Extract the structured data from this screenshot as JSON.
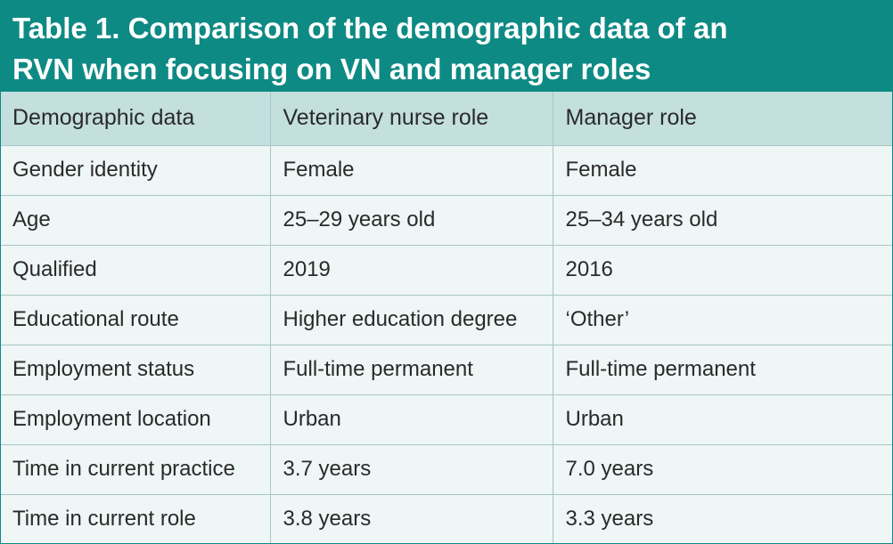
{
  "title": {
    "line1": "Table 1. Comparison of the demographic data of an",
    "line2": "RVN when focusing on VN and manager roles"
  },
  "headers": [
    "Demographic data",
    "Veterinary nurse role",
    "Manager role"
  ],
  "rows": [
    [
      "Gender identity",
      "Female",
      "Female"
    ],
    [
      "Age",
      "25–29 years old",
      "25–34 years old"
    ],
    [
      "Qualified",
      "2019",
      "2016"
    ],
    [
      "Educational route",
      "Higher education degree",
      "‘Other’"
    ],
    [
      "Employment status",
      "Full-time permanent",
      "Full-time permanent"
    ],
    [
      "Employment location",
      "Urban",
      "Urban"
    ],
    [
      "Time in current practice",
      "3.7 years",
      "7.0 years"
    ],
    [
      "Time in current role",
      "3.8 years",
      "3.3 years"
    ]
  ],
  "colors": {
    "title_bg": "#0e8a84",
    "header_bg": "#c3dfde",
    "row_bg": "#eef6f6",
    "rule": "#a8c6c5"
  }
}
